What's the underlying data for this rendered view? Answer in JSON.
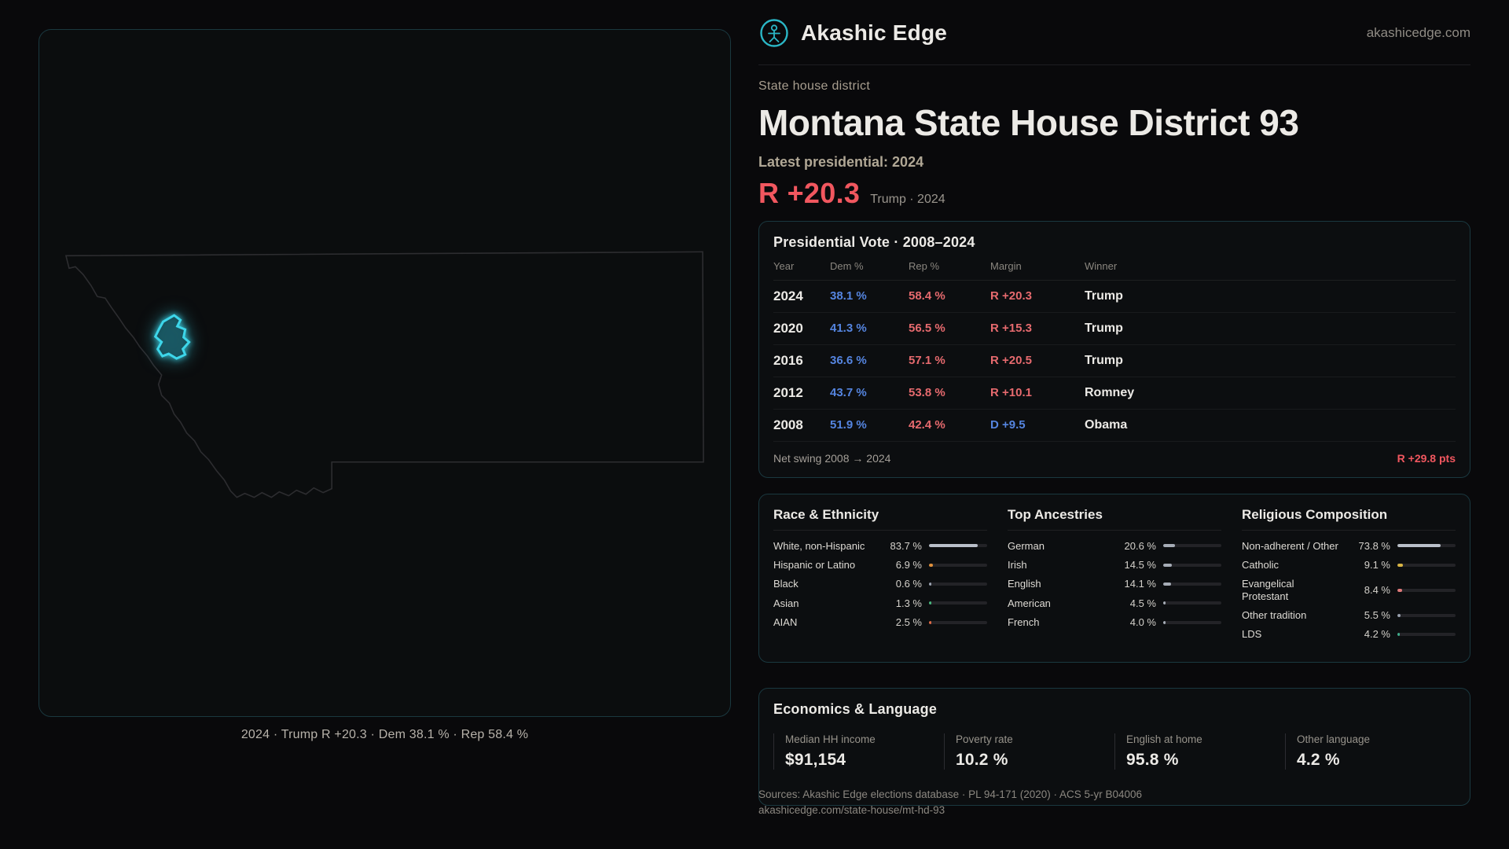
{
  "brand": {
    "name": "Akashic Edge",
    "domain": "akashicedge.com"
  },
  "page": {
    "kicker": "State house district",
    "title": "Montana State House District 93",
    "latest_label": "Latest presidential: 2024",
    "headline_margin": "R +20.3",
    "headline_context": "Trump · 2024"
  },
  "map": {
    "caption": "2024 · Trump R +20.3 · Dem 38.1 % · Rep 58.4 %"
  },
  "presidential": {
    "title": "Presidential Vote · 2008–2024",
    "columns": {
      "year": "Year",
      "dem": "Dem %",
      "rep": "Rep %",
      "margin": "Margin",
      "winner": "Winner"
    },
    "rows": [
      {
        "year": "2024",
        "dem": "38.1 %",
        "rep": "58.4 %",
        "margin": "R +20.3",
        "party": "R",
        "winner": "Trump"
      },
      {
        "year": "2020",
        "dem": "41.3 %",
        "rep": "56.5 %",
        "margin": "R +15.3",
        "party": "R",
        "winner": "Trump"
      },
      {
        "year": "2016",
        "dem": "36.6 %",
        "rep": "57.1 %",
        "margin": "R +20.5",
        "party": "R",
        "winner": "Trump"
      },
      {
        "year": "2012",
        "dem": "43.7 %",
        "rep": "53.8 %",
        "margin": "R +10.1",
        "party": "R",
        "winner": "Romney"
      },
      {
        "year": "2008",
        "dem": "51.9 %",
        "rep": "42.4 %",
        "margin": "D +9.5",
        "party": "D",
        "winner": "Obama"
      }
    ],
    "net_swing_label": "Net swing 2008 → 2024",
    "net_swing_value": "R +29.8 pts"
  },
  "race": {
    "title": "Race & Ethnicity",
    "items": [
      {
        "label": "White, non-Hispanic",
        "value": "83.7 %",
        "pct": 83.7,
        "color": "#b9bfc9"
      },
      {
        "label": "Hispanic or Latino",
        "value": "6.9 %",
        "pct": 6.9,
        "color": "#e0903c"
      },
      {
        "label": "Black",
        "value": "0.6 %",
        "pct": 0.6,
        "color": "#9aa2b0"
      },
      {
        "label": "Asian",
        "value": "1.3 %",
        "pct": 1.3,
        "color": "#47b87d"
      },
      {
        "label": "AIAN",
        "value": "2.5 %",
        "pct": 2.5,
        "color": "#e06a45"
      }
    ]
  },
  "ancestries": {
    "title": "Top Ancestries",
    "items": [
      {
        "label": "German",
        "value": "20.6 %",
        "pct": 20.6,
        "color": "#a6acb6"
      },
      {
        "label": "Irish",
        "value": "14.5 %",
        "pct": 14.5,
        "color": "#a6acb6"
      },
      {
        "label": "English",
        "value": "14.1 %",
        "pct": 14.1,
        "color": "#a6acb6"
      },
      {
        "label": "American",
        "value": "4.5 %",
        "pct": 4.5,
        "color": "#a6acb6"
      },
      {
        "label": "French",
        "value": "4.0 %",
        "pct": 4.0,
        "color": "#a6acb6"
      }
    ]
  },
  "religion": {
    "title": "Religious Composition",
    "items": [
      {
        "label": "Non-adherent / Other",
        "value": "73.8 %",
        "pct": 73.8,
        "color": "#b9bfc9"
      },
      {
        "label": "Catholic",
        "value": "9.1 %",
        "pct": 9.1,
        "color": "#d9b544"
      },
      {
        "label": "Evangelical Protestant",
        "value": "8.4 %",
        "pct": 8.4,
        "color": "#e07a7a"
      },
      {
        "label": "Other tradition",
        "value": "5.5 %",
        "pct": 5.5,
        "color": "#9aa2b0"
      },
      {
        "label": "LDS",
        "value": "4.2 %",
        "pct": 4.2,
        "color": "#3fae8c"
      }
    ]
  },
  "economics": {
    "title": "Economics & Language",
    "stats": [
      {
        "label": "Median HH income",
        "value": "$91,154"
      },
      {
        "label": "Poverty rate",
        "value": "10.2 %"
      },
      {
        "label": "English at home",
        "value": "95.8 %"
      },
      {
        "label": "Other language",
        "value": "4.2 %"
      }
    ]
  },
  "footer": {
    "sources": "Sources: Akashic Edge elections database · PL 94-171 (2020) · ACS 5-yr B04006",
    "permalink": "akashicedge.com/state-house/mt-hd-93"
  }
}
